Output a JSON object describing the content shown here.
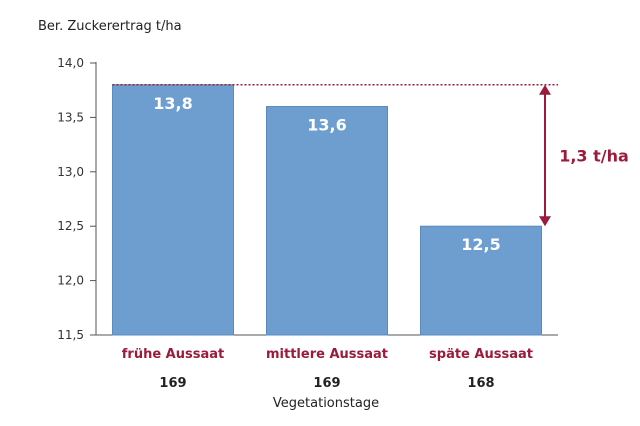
{
  "chart_data": {
    "type": "bar",
    "ylabel": "Ber. Zuckerertrag t/ha",
    "xlabel": "Vegetationstage",
    "ylim": [
      11.5,
      14.0
    ],
    "yticks": [
      "11,5",
      "12,0",
      "12,5",
      "13,0",
      "13,5",
      "14,0"
    ],
    "categories": [
      "frühe Aussaat",
      "mittlere Aussaat",
      "späte Aussaat"
    ],
    "values": [
      13.8,
      13.6,
      12.5
    ],
    "value_labels": [
      "13,8",
      "13,6",
      "12,5"
    ],
    "vegetation_days": [
      "169",
      "169",
      "168"
    ],
    "difference_label": "1,3 t/ha",
    "colors": {
      "bar": "#6d9ecf",
      "bar_edge": "#5b8bbd",
      "accent": "#9b1b3a",
      "axis": "#555555"
    },
    "grid": false
  }
}
